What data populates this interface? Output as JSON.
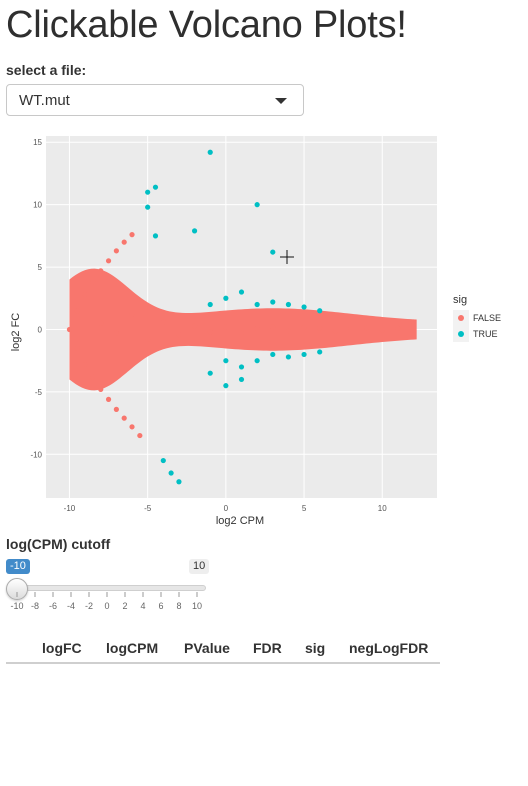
{
  "page": {
    "title": "Clickable Volcano Plots!"
  },
  "file_select": {
    "label": "select a file:",
    "value": "WT.mut"
  },
  "plot": {
    "xlabel": "log2 CPM",
    "ylabel": "log2 FC",
    "xticks": [
      "-10",
      "-5",
      "0",
      "5",
      "10"
    ],
    "yticks": [
      "15",
      "10",
      "5",
      "0",
      "-5",
      "-10"
    ],
    "legend_title": "sig",
    "legend": [
      {
        "label": "FALSE",
        "color": "#F8766D"
      },
      {
        "label": "TRUE",
        "color": "#00BFC4"
      }
    ],
    "panel_bg": "#EBEBEB",
    "legend_position": "right",
    "grid": true
  },
  "chart_data": {
    "type": "scatter",
    "xlabel": "log2 CPM",
    "ylabel": "log2 FC",
    "xlim": [
      -11.5,
      13.5
    ],
    "ylim": [
      -13.5,
      15.5
    ],
    "series": [
      {
        "name": "FALSE",
        "color": "#F8766D",
        "points": [
          [
            -10,
            0
          ],
          [
            -9.5,
            1.5
          ],
          [
            -9,
            2.8
          ],
          [
            -8.5,
            3.8
          ],
          [
            -8,
            4.7
          ],
          [
            -7.5,
            5.5
          ],
          [
            -7,
            6.3
          ],
          [
            -6.5,
            7
          ],
          [
            -6,
            7.6
          ],
          [
            -9.5,
            -1.5
          ],
          [
            -9,
            -2.8
          ],
          [
            -8.5,
            -3.8
          ],
          [
            -8,
            -4.8
          ],
          [
            -7.5,
            -5.6
          ],
          [
            -7,
            -6.4
          ],
          [
            -6.5,
            -7.1
          ],
          [
            -6,
            -7.8
          ],
          [
            -5.5,
            -8.5
          ],
          [
            -8,
            0.5
          ],
          [
            -7,
            -0.3
          ],
          [
            -6,
            1.2
          ],
          [
            -5,
            -0.8
          ],
          [
            -4,
            0.6
          ],
          [
            -3,
            -0.4
          ],
          [
            -2,
            0.3
          ],
          [
            -1,
            -0.2
          ],
          [
            0,
            0.2
          ],
          [
            1,
            -0.3
          ],
          [
            2,
            0.1
          ],
          [
            3,
            0.2
          ],
          [
            4,
            -0.1
          ],
          [
            5,
            0.15
          ],
          [
            6,
            0.1
          ],
          [
            7,
            -0.1
          ],
          [
            8,
            0.05
          ],
          [
            9,
            0.1
          ],
          [
            10,
            -0.05
          ],
          [
            11,
            0.1
          ],
          [
            12,
            0.6
          ]
        ]
      },
      {
        "name": "TRUE",
        "color": "#00BFC4",
        "points": [
          [
            -4.5,
            11.4
          ],
          [
            -5,
            11
          ],
          [
            -5,
            9.8
          ],
          [
            -4.5,
            7.5
          ],
          [
            -2,
            7.9
          ],
          [
            -1,
            14.2
          ],
          [
            2,
            10
          ],
          [
            -4,
            -10.5
          ],
          [
            -3.5,
            -11.5
          ],
          [
            -3,
            -12.2
          ],
          [
            -1,
            2
          ],
          [
            0,
            2.5
          ],
          [
            1,
            3
          ],
          [
            2,
            2
          ],
          [
            3,
            2.2
          ],
          [
            4,
            2
          ],
          [
            5,
            1.8
          ],
          [
            6,
            1.5
          ],
          [
            0,
            -2.5
          ],
          [
            1,
            -3
          ],
          [
            2,
            -2.5
          ],
          [
            3,
            -2
          ],
          [
            4,
            -2.2
          ],
          [
            5,
            -2
          ],
          [
            6,
            -1.8
          ],
          [
            -1,
            -3.5
          ],
          [
            0,
            -4.5
          ],
          [
            1,
            -4
          ],
          [
            3,
            6.2
          ]
        ]
      }
    ]
  },
  "slider": {
    "label": "log(CPM) cutoff",
    "min_label": "-10",
    "max_label": "10",
    "min": -10,
    "max": 10,
    "value": -10,
    "ticks": [
      "-10",
      "-8",
      "-6",
      "-4",
      "-2",
      "0",
      "2",
      "4",
      "6",
      "8",
      "10"
    ]
  },
  "table": {
    "columns": [
      "logFC",
      "logCPM",
      "PValue",
      "FDR",
      "sig",
      "negLogFDR"
    ]
  }
}
